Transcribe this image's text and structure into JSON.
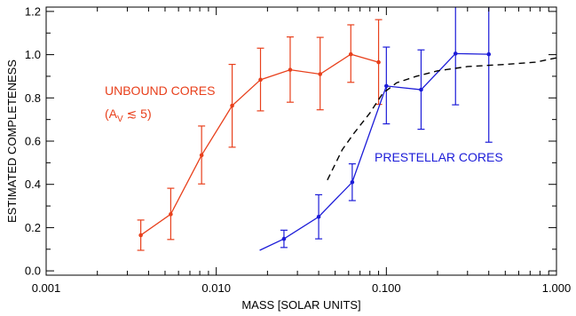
{
  "chart_data": {
    "type": "line",
    "title": "",
    "xlabel": "MASS [SOLAR UNITS]",
    "ylabel": "ESTIMATED COMPLETENESS",
    "xscale": "log",
    "xlim": [
      0.001,
      1.0
    ],
    "ylim": [
      -0.02,
      1.22
    ],
    "xticks": [
      {
        "value": 0.001,
        "label": "0.001"
      },
      {
        "value": 0.01,
        "label": "0.010"
      },
      {
        "value": 0.1,
        "label": "0.100"
      },
      {
        "value": 1.0,
        "label": "1.000"
      }
    ],
    "yticks": [
      {
        "value": 0.0,
        "label": "0.0"
      },
      {
        "value": 0.2,
        "label": "0.2"
      },
      {
        "value": 0.4,
        "label": "0.4"
      },
      {
        "value": 0.6,
        "label": "0.6"
      },
      {
        "value": 0.8,
        "label": "0.8"
      },
      {
        "value": 1.0,
        "label": "1.0"
      },
      {
        "value": 1.2,
        "label": "1.2"
      }
    ],
    "grid": false,
    "series": [
      {
        "color": "#e8401c",
        "style": "solid",
        "markers": true,
        "points": [
          {
            "x": 0.0036,
            "y": 0.165,
            "lo": 0.095,
            "hi": 0.235
          },
          {
            "x": 0.0054,
            "y": 0.262,
            "lo": 0.145,
            "hi": 0.382
          },
          {
            "x": 0.0082,
            "y": 0.535,
            "lo": 0.402,
            "hi": 0.67
          },
          {
            "x": 0.0124,
            "y": 0.764,
            "lo": 0.572,
            "hi": 0.955
          },
          {
            "x": 0.0182,
            "y": 0.884,
            "lo": 0.74,
            "hi": 1.03
          },
          {
            "x": 0.0272,
            "y": 0.93,
            "lo": 0.78,
            "hi": 1.082
          },
          {
            "x": 0.0408,
            "y": 0.91,
            "lo": 0.745,
            "hi": 1.08
          },
          {
            "x": 0.0618,
            "y": 1.002,
            "lo": 0.872,
            "hi": 1.138
          },
          {
            "x": 0.09,
            "y": 0.965,
            "lo": 0.77,
            "hi": 1.162
          }
        ]
      },
      {
        "color": "#1c1cd8",
        "style": "solid",
        "markers": true,
        "lead_in": [
          {
            "x": 0.018,
            "y": 0.095
          }
        ],
        "points": [
          {
            "x": 0.025,
            "y": 0.148,
            "lo": 0.108,
            "hi": 0.188
          },
          {
            "x": 0.04,
            "y": 0.25,
            "lo": 0.148,
            "hi": 0.352
          },
          {
            "x": 0.063,
            "y": 0.41,
            "lo": 0.325,
            "hi": 0.495
          },
          {
            "x": 0.1,
            "y": 0.855,
            "lo": 0.68,
            "hi": 1.035
          },
          {
            "x": 0.16,
            "y": 0.838,
            "lo": 0.655,
            "hi": 1.022
          },
          {
            "x": 0.255,
            "y": 1.005,
            "lo": 0.768,
            "hi": 1.25
          },
          {
            "x": 0.4,
            "y": 1.002,
            "lo": 0.595,
            "hi": 1.25
          }
        ]
      },
      {
        "color": "#000000",
        "style": "dashed",
        "markers": false,
        "points": [
          {
            "x": 0.045,
            "y": 0.42
          },
          {
            "x": 0.055,
            "y": 0.56
          },
          {
            "x": 0.065,
            "y": 0.64
          },
          {
            "x": 0.08,
            "y": 0.73
          },
          {
            "x": 0.095,
            "y": 0.82
          },
          {
            "x": 0.115,
            "y": 0.87
          },
          {
            "x": 0.15,
            "y": 0.9
          },
          {
            "x": 0.2,
            "y": 0.925
          },
          {
            "x": 0.3,
            "y": 0.945
          },
          {
            "x": 0.5,
            "y": 0.955
          },
          {
            "x": 0.75,
            "y": 0.965
          },
          {
            "x": 1.0,
            "y": 0.985
          }
        ]
      }
    ],
    "annotations": {
      "unbound_cores": {
        "text": "UNBOUND CORES",
        "color": "#e8401c"
      },
      "av_label": {
        "text": "(A",
        "subscript": "V",
        "rest": " ≲ 5)",
        "color": "#e8401c"
      },
      "prestellar_cores": {
        "text": "PRESTELLAR CORES",
        "color": "#1c1cd8"
      }
    }
  }
}
